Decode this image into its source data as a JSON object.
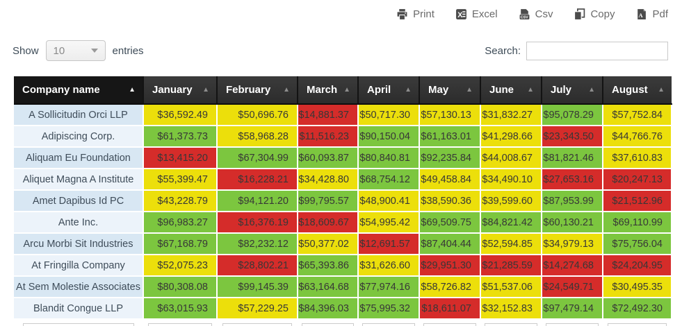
{
  "toolbar": {
    "buttons": [
      {
        "label": "Print",
        "icon": "printer-icon"
      },
      {
        "label": "Excel",
        "icon": "excel-icon"
      },
      {
        "label": "Csv",
        "icon": "csv-icon"
      },
      {
        "label": "Copy",
        "icon": "copy-icon"
      },
      {
        "label": "Pdf",
        "icon": "pdf-icon"
      }
    ]
  },
  "controls": {
    "show_label": "Show",
    "entries_value": "10",
    "entries_label": "entries",
    "search_label": "Search:",
    "search_value": ""
  },
  "table": {
    "columns": [
      {
        "label": "Company name",
        "sorted": true,
        "sort_icon": "sort-asc-icon"
      },
      {
        "label": "January",
        "sorted": false,
        "sort_icon": "sort-asc-icon"
      },
      {
        "label": "February",
        "sorted": false,
        "sort_icon": "sort-asc-icon"
      },
      {
        "label": "March",
        "sorted": false,
        "sort_icon": "sort-asc-icon"
      },
      {
        "label": "April",
        "sorted": false,
        "sort_icon": "sort-asc-icon"
      },
      {
        "label": "May",
        "sorted": false,
        "sort_icon": "sort-asc-icon"
      },
      {
        "label": "June",
        "sorted": false,
        "sort_icon": "sort-asc-icon"
      },
      {
        "label": "July",
        "sorted": false,
        "sort_icon": "sort-asc-icon"
      },
      {
        "label": "August",
        "sorted": false,
        "sort_icon": "sort-asc-icon"
      }
    ],
    "rows": [
      {
        "company": "A Sollicitudin Orci LLP",
        "values": [
          "$36,592.49",
          "$50,696.76",
          "$14,881.37",
          "$50,717.30",
          "$57,130.13",
          "$31,832.27",
          "$95,078.29",
          "$57,752.84"
        ],
        "colors": [
          "y",
          "y",
          "r",
          "y",
          "y",
          "y",
          "g",
          "y"
        ]
      },
      {
        "company": "Adipiscing Corp.",
        "values": [
          "$61,373.73",
          "$58,968.28",
          "$11,516.23",
          "$90,150.04",
          "$61,163.01",
          "$41,298.66",
          "$23,343.50",
          "$44,766.76"
        ],
        "colors": [
          "g",
          "y",
          "r",
          "g",
          "g",
          "y",
          "r",
          "y"
        ]
      },
      {
        "company": "Aliquam Eu Foundation",
        "values": [
          "$13,415.20",
          "$67,304.99",
          "$60,093.87",
          "$80,840.81",
          "$92,235.84",
          "$44,008.67",
          "$81,821.46",
          "$37,610.83"
        ],
        "colors": [
          "r",
          "g",
          "g",
          "g",
          "g",
          "y",
          "g",
          "y"
        ]
      },
      {
        "company": "Aliquet Magna A Institute",
        "values": [
          "$55,399.47",
          "$16,228.21",
          "$34,428.80",
          "$68,754.12",
          "$49,458.84",
          "$34,490.10",
          "$27,653.16",
          "$20,247.13"
        ],
        "colors": [
          "y",
          "r",
          "y",
          "g",
          "y",
          "y",
          "r",
          "r"
        ]
      },
      {
        "company": "Amet Dapibus Id PC",
        "values": [
          "$43,228.79",
          "$94,121.20",
          "$99,795.57",
          "$48,900.41",
          "$38,590.36",
          "$39,599.60",
          "$87,953.99",
          "$21,512.96"
        ],
        "colors": [
          "y",
          "g",
          "g",
          "y",
          "y",
          "y",
          "g",
          "r"
        ]
      },
      {
        "company": "Ante Inc.",
        "values": [
          "$96,983.27",
          "$16,376.19",
          "$18,609.67",
          "$54,995.42",
          "$69,509.75",
          "$84,821.42",
          "$60,130.21",
          "$69,110.99"
        ],
        "colors": [
          "g",
          "r",
          "r",
          "y",
          "g",
          "g",
          "g",
          "g"
        ]
      },
      {
        "company": "Arcu Morbi Sit Industries",
        "values": [
          "$67,168.79",
          "$82,232.12",
          "$50,377.02",
          "$12,691.57",
          "$87,404.44",
          "$52,594.85",
          "$34,979.13",
          "$75,756.04"
        ],
        "colors": [
          "g",
          "g",
          "y",
          "r",
          "g",
          "y",
          "y",
          "g"
        ]
      },
      {
        "company": "At Fringilla Company",
        "values": [
          "$52,075.23",
          "$28,802.21",
          "$65,393.86",
          "$31,626.60",
          "$29,951.30",
          "$21,285.59",
          "$14,274.68",
          "$24,204.95"
        ],
        "colors": [
          "y",
          "r",
          "g",
          "y",
          "r",
          "r",
          "r",
          "r"
        ]
      },
      {
        "company": "At Sem Molestie Associates",
        "values": [
          "$80,308.08",
          "$99,145.39",
          "$63,164.68",
          "$77,974.16",
          "$58,726.82",
          "$51,537.06",
          "$24,549.71",
          "$30,495.35"
        ],
        "colors": [
          "g",
          "g",
          "g",
          "g",
          "y",
          "y",
          "r",
          "y"
        ]
      },
      {
        "company": "Blandit Congue LLP",
        "values": [
          "$63,015.93",
          "$57,229.25",
          "$84,396.03",
          "$75,995.32",
          "$18,611.07",
          "$32,152.83",
          "$97,479.14",
          "$72,492.30"
        ],
        "colors": [
          "g",
          "y",
          "g",
          "g",
          "r",
          "y",
          "g",
          "g"
        ]
      }
    ]
  },
  "colors": {
    "green": "#7cc63f",
    "yellow": "#ecdf0b",
    "red": "#d52c2a",
    "header_bg": "#333333",
    "header_sorted_bg": "#161616",
    "company_odd_bg": "#d8e7f3",
    "company_even_bg": "#ecf3fa"
  }
}
